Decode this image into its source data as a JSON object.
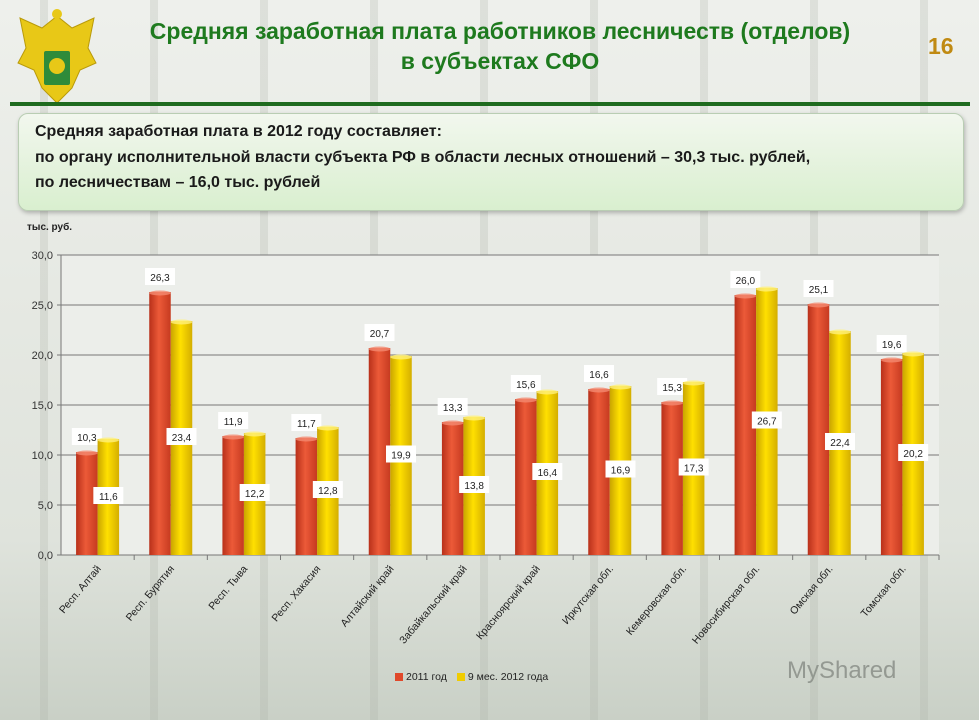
{
  "header": {
    "title_line1": "Средняя заработная плата работников лесничеств (отделов)",
    "title_line2": "в субъектах СФО",
    "page_number": "16"
  },
  "info": {
    "line1": "Средняя заработная плата в 2012 году составляет:",
    "line2": "по органу исполнительной власти субъекта РФ в области лесных отношений – 30,3 тыс. рублей,",
    "line3": "по лесничествам  – 16,0 тыс. рублей"
  },
  "watermark": "MyShared",
  "chart_data": {
    "type": "bar",
    "ylabel": "тыс. руб.",
    "ylim": [
      0,
      30
    ],
    "yticks": [
      "0,0",
      "5,0",
      "10,0",
      "15,0",
      "20,0",
      "25,0",
      "30,0"
    ],
    "grid": true,
    "legend_position": "bottom",
    "categories": [
      "Респ. Алтай",
      "Респ. Бурятия",
      "Респ. Тыва",
      "Респ. Хакасия",
      "Алтайский край",
      "Забайкальский край",
      "Красноярский край",
      "Иркутская обл.",
      "Кемеровская обл.",
      "Новосибирская обл.",
      "Омская обл.",
      "Томская обл."
    ],
    "series": [
      {
        "name": "2011 год",
        "color": "#e0482a",
        "values": [
          10.3,
          26.3,
          11.9,
          11.7,
          20.7,
          13.3,
          15.6,
          16.6,
          15.3,
          26.0,
          25.1,
          19.6
        ],
        "labels": [
          "10,3",
          "26,3",
          "11,9",
          "11,7",
          "20,7",
          "13,3",
          "15,6",
          "16,6",
          "15,3",
          "26,0",
          "25,1",
          "19,6"
        ]
      },
      {
        "name": "9 мес. 2012 года",
        "color": "#f0cc00",
        "values": [
          11.6,
          23.4,
          12.2,
          12.8,
          19.9,
          13.8,
          16.4,
          16.9,
          17.3,
          26.7,
          22.4,
          20.2
        ],
        "labels": [
          "11,6",
          "23,4",
          "12,2",
          "12,8",
          "19,9",
          "13,8",
          "16,4",
          "16,9",
          "17,3",
          "26,7",
          "22,4",
          "20,2"
        ]
      }
    ]
  }
}
